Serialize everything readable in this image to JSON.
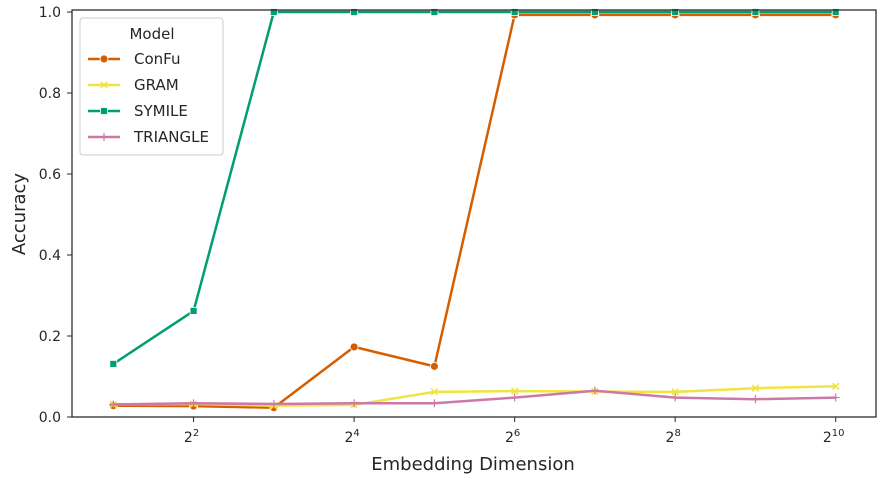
{
  "chart_data": {
    "type": "line",
    "xlabel": "Embedding Dimension",
    "ylabel": "Accuracy",
    "x_scale": "log2",
    "x": [
      2,
      4,
      8,
      16,
      32,
      64,
      128,
      256,
      512,
      1024
    ],
    "xlim": [
      1.4,
      1450
    ],
    "ylim": [
      0,
      1.005
    ],
    "x_ticks": [
      {
        "value": 4,
        "base": "2",
        "exp": "2"
      },
      {
        "value": 16,
        "base": "2",
        "exp": "4"
      },
      {
        "value": 64,
        "base": "2",
        "exp": "6"
      },
      {
        "value": 256,
        "base": "2",
        "exp": "8"
      },
      {
        "value": 1024,
        "base": "2",
        "exp": "10"
      }
    ],
    "y_ticks": [
      {
        "value": 0.0,
        "label": "0.0"
      },
      {
        "value": 0.2,
        "label": "0.2"
      },
      {
        "value": 0.4,
        "label": "0.4"
      },
      {
        "value": 0.6,
        "label": "0.6"
      },
      {
        "value": 0.8,
        "label": "0.8"
      },
      {
        "value": 1.0,
        "label": "1.0"
      }
    ],
    "grid": false,
    "legend": {
      "title": "Model",
      "position": "top-left"
    },
    "series": [
      {
        "name": "ConFu",
        "color": "#d55e00",
        "marker": "circle",
        "values": [
          0.028,
          0.027,
          0.023,
          0.173,
          0.125,
          0.993,
          0.993,
          0.993,
          0.993,
          0.993
        ]
      },
      {
        "name": "GRAM",
        "color": "#f0e442",
        "marker": "x",
        "values": [
          0.031,
          0.032,
          0.028,
          0.03,
          0.062,
          0.064,
          0.063,
          0.062,
          0.071,
          0.076
        ]
      },
      {
        "name": "SYMILE",
        "color": "#009e73",
        "marker": "square",
        "values": [
          0.131,
          0.262,
          1.0,
          1.0,
          1.0,
          1.0,
          1.0,
          1.0,
          1.0,
          1.0
        ]
      },
      {
        "name": "TRIANGLE",
        "color": "#cc79a7",
        "marker": "plus",
        "values": [
          0.031,
          0.034,
          0.032,
          0.034,
          0.034,
          0.048,
          0.065,
          0.048,
          0.044,
          0.048
        ]
      }
    ]
  }
}
